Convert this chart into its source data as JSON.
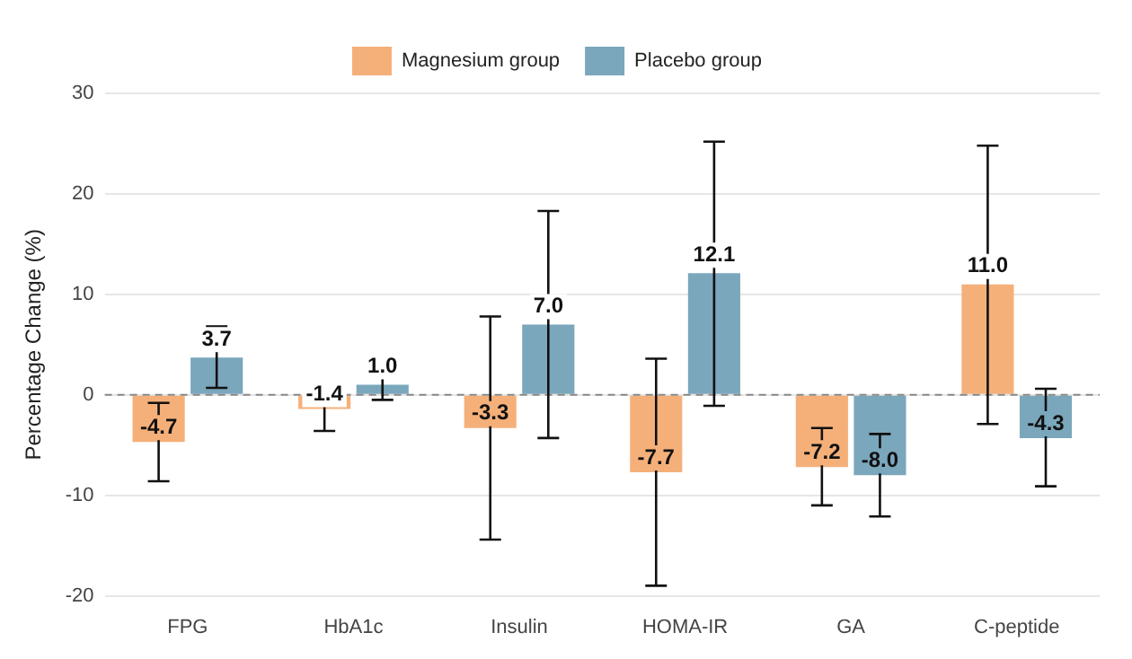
{
  "chart_data": {
    "type": "bar",
    "ylabel": "Percentage Change (%)",
    "categories": [
      "FPG",
      "HbA1c",
      "Insulin",
      "HOMA-IR",
      "GA",
      "C-peptide"
    ],
    "series": [
      {
        "name": "Magnesium group",
        "color": "#f5b07a",
        "values": [
          -4.7,
          -1.4,
          -3.3,
          -7.7,
          -7.2,
          11.0
        ],
        "errors": [
          [
            -8.6,
            -0.8
          ],
          [
            -3.6,
            1.0
          ],
          [
            -14.4,
            7.8
          ],
          [
            -19.0,
            3.6
          ],
          [
            -11.0,
            -3.3
          ],
          [
            -2.9,
            24.8
          ]
        ],
        "value_labels": [
          "-4.7",
          "-1.4",
          "-3.3",
          "-7.7",
          "-7.2",
          "11.0"
        ]
      },
      {
        "name": "Placebo group",
        "color": "#7ba7bc",
        "values": [
          3.7,
          1.0,
          7.0,
          12.1,
          -8.0,
          -4.3
        ],
        "errors": [
          [
            0.7,
            6.8
          ],
          [
            -0.5,
            2.4
          ],
          [
            -4.3,
            18.3
          ],
          [
            -1.1,
            25.2
          ],
          [
            -12.1,
            -3.9
          ],
          [
            -9.1,
            0.6
          ]
        ],
        "value_labels": [
          "3.7",
          "1.0",
          "7.0",
          "12.1",
          "-8.0",
          "-4.3"
        ]
      }
    ],
    "ylim": [
      -20,
      30
    ],
    "yticks": [
      -20,
      -10,
      0,
      10,
      20,
      30
    ],
    "grid": "y",
    "legend": "top",
    "ref_lines": [
      {
        "axis": "y",
        "value": 0,
        "color": "#888888",
        "line_style": "dashed"
      }
    ]
  }
}
